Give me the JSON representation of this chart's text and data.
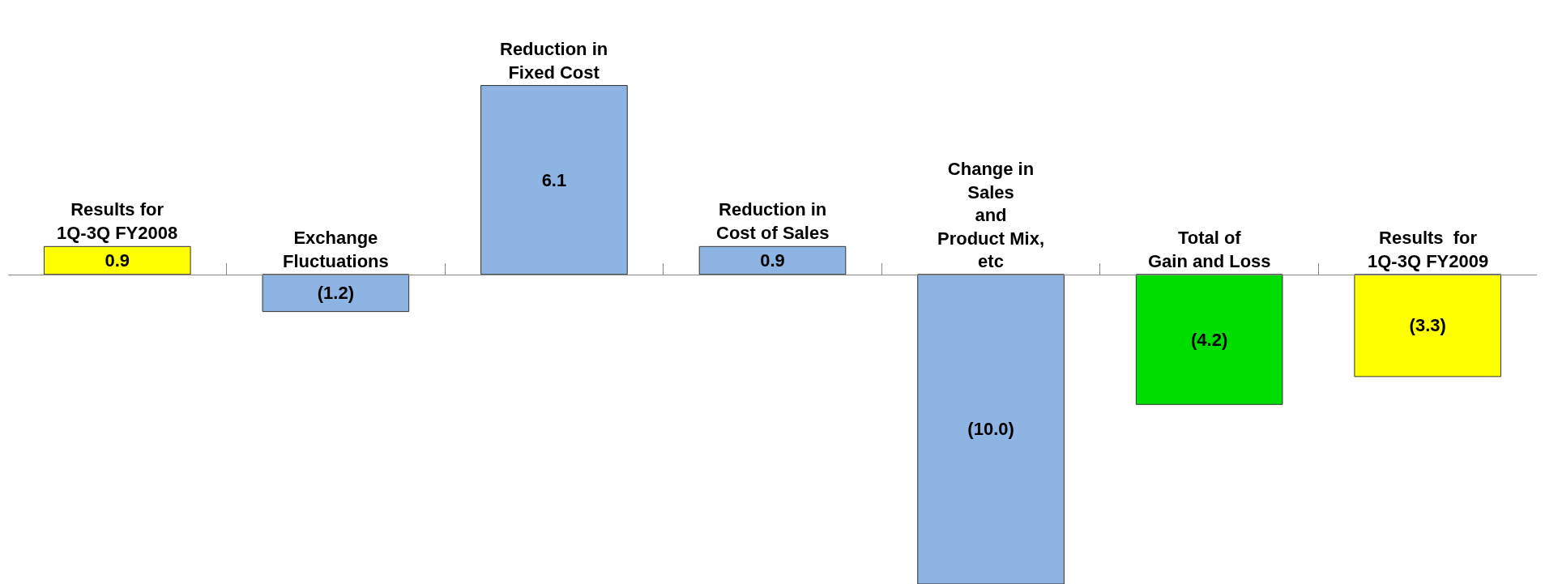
{
  "chart_data": {
    "type": "bar",
    "categories": [
      "Results for\n1Q-3Q FY2008",
      "Exchange\nFluctuations",
      "Reduction in\nFixed Cost",
      "Reduction in\nCost of Sales",
      "Change in\nSales\nand\nProduct Mix,\netc",
      "Total of\nGain and Loss",
      "Results  for\n1Q-3Q FY2009"
    ],
    "values": [
      0.9,
      -1.2,
      6.1,
      0.9,
      -10.0,
      -4.2,
      -3.3
    ],
    "colors": [
      "#ffff00",
      "#8db4e2",
      "#8db4e2",
      "#8db4e2",
      "#8db4e2",
      "#00dd00",
      "#ffff00"
    ],
    "value_labels": [
      "0.9",
      "(1.2)",
      "6.1",
      "0.9",
      "(10.0)",
      "(4.2)",
      "(3.3)"
    ],
    "legend": false
  }
}
